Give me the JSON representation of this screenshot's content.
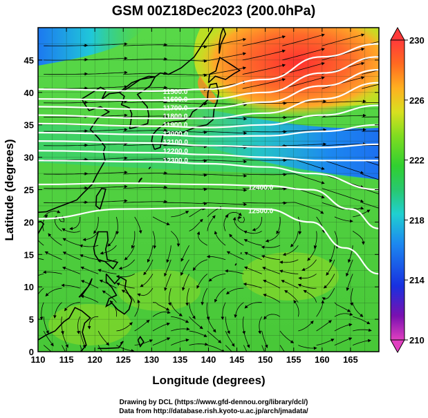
{
  "title": "GSM 00Z18Dec2023 (200.0hPa)",
  "x_axis": {
    "label": "Longitude (degrees)",
    "range": [
      110,
      170
    ],
    "ticks": [
      "110",
      "115",
      "120",
      "125",
      "130",
      "135",
      "140",
      "145",
      "150",
      "155",
      "160",
      "165"
    ]
  },
  "y_axis": {
    "label": "Latitude (degrees)",
    "range": [
      0,
      50
    ],
    "ticks": [
      "0",
      "5",
      "10",
      "15",
      "20",
      "25",
      "30",
      "35",
      "40",
      "45"
    ]
  },
  "colorbar": {
    "min": 210,
    "max": 230,
    "ticks": [
      "230",
      "226",
      "222",
      "218",
      "214",
      "210"
    ],
    "colors": [
      "#e040c0",
      "#6a00a0",
      "#1030e0",
      "#1c78f0",
      "#20d0e0",
      "#28c890",
      "#30d030",
      "#70dc20",
      "#c8e020",
      "#ffb020",
      "#ff7020",
      "#ff3a3a"
    ]
  },
  "contours": {
    "color": "#ffffff",
    "labels": [
      "11500.0",
      "11600.0",
      "11700.0",
      "11800.0",
      "11900.0",
      "12000.0",
      "12100.0",
      "12200.0",
      "12300.0",
      "12400.0",
      "12500.0"
    ]
  },
  "credits": {
    "line1": "Drawing by DCL (https://www.gfd-dennou.org/library/dcl/)",
    "line2": "Data from http://database.rish.kyoto-u.ac.jp/arch/jmadata/"
  }
}
